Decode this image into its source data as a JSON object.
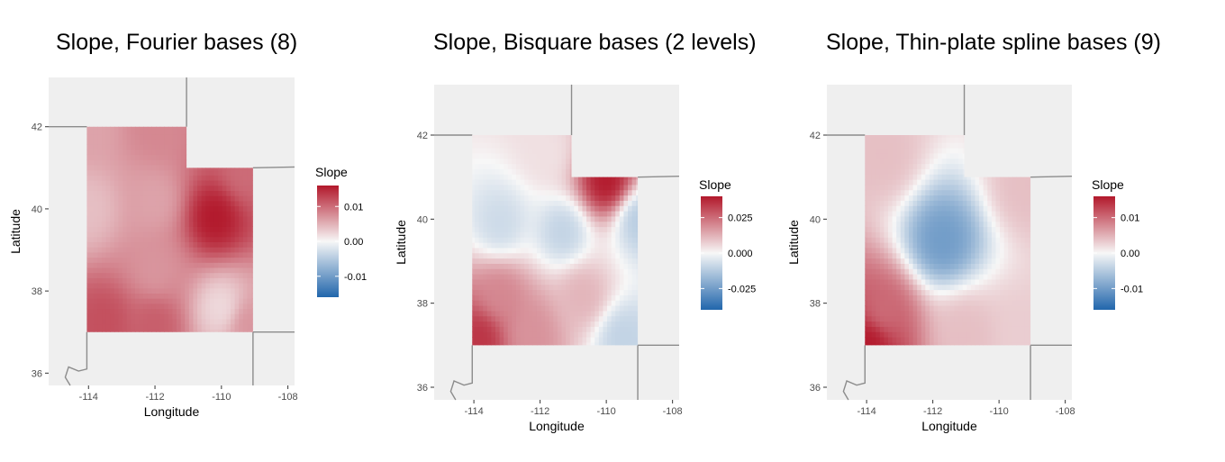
{
  "chart_data": [
    {
      "type": "heatmap",
      "title": "Slope, Fourier bases (8)",
      "xlabel": "Longitude",
      "ylabel": "Latitude",
      "xlim": [
        -115.2,
        -107.8
      ],
      "ylim": [
        35.7,
        43.2
      ],
      "x_ticks": [
        -114,
        -112,
        -110,
        -108
      ],
      "y_ticks": [
        36,
        38,
        40,
        42
      ],
      "x_tick_labels": [
        "-114",
        "-112",
        "-110",
        "-108"
      ],
      "y_tick_labels": [
        "36",
        "38",
        "40",
        "42"
      ],
      "legend": {
        "title": "Slope",
        "placement": "right",
        "min": -0.016,
        "max": 0.016,
        "ticks": [
          -0.01,
          0.0,
          0.01
        ],
        "tick_labels": [
          "-0.01",
          "0.00",
          "0.01"
        ]
      },
      "field": [
        {
          "lon": -114,
          "lat": 42,
          "value": 0.006
        },
        {
          "lon": -112,
          "lat": 42,
          "value": 0.008
        },
        {
          "lon": -114,
          "lat": 40,
          "value": 0.004
        },
        {
          "lon": -112,
          "lat": 40.2,
          "value": 0.006
        },
        {
          "lon": -110.2,
          "lat": 39.8,
          "value": 0.016
        },
        {
          "lon": -109.3,
          "lat": 40.9,
          "value": 0.01
        },
        {
          "lon": -113.5,
          "lat": 37.3,
          "value": 0.012
        },
        {
          "lon": -112,
          "lat": 37.2,
          "value": 0.011
        },
        {
          "lon": -110,
          "lat": 37.6,
          "value": 0.002
        },
        {
          "lon": -109.2,
          "lat": 37.2,
          "value": 0.007
        },
        {
          "lon": -112,
          "lat": 38.5,
          "value": 0.007
        }
      ]
    },
    {
      "type": "heatmap",
      "title": "Slope, Bisquare bases (2 levels)",
      "xlabel": "Longitude",
      "ylabel": "Latitude",
      "xlim": [
        -115.2,
        -107.8
      ],
      "ylim": [
        35.7,
        43.2
      ],
      "x_ticks": [
        -114,
        -112,
        -110,
        -108
      ],
      "y_ticks": [
        36,
        38,
        40,
        42
      ],
      "x_tick_labels": [
        "-114",
        "-112",
        "-110",
        "-108"
      ],
      "y_tick_labels": [
        "36",
        "38",
        "40",
        "42"
      ],
      "legend": {
        "title": "Slope",
        "placement": "right",
        "min": -0.04,
        "max": 0.04,
        "ticks": [
          -0.025,
          0.0,
          0.025
        ],
        "tick_labels": [
          "-0.025",
          "0.000",
          "0.025"
        ]
      },
      "field": [
        {
          "lon": -110,
          "lat": 40.9,
          "value": 0.04
        },
        {
          "lon": -113.8,
          "lat": 37.2,
          "value": 0.035
        },
        {
          "lon": -113.2,
          "lat": 38.2,
          "value": 0.02
        },
        {
          "lon": -113.2,
          "lat": 39.9,
          "value": -0.008
        },
        {
          "lon": -111.3,
          "lat": 39.7,
          "value": -0.01
        },
        {
          "lon": -109,
          "lat": 40,
          "value": -0.012
        },
        {
          "lon": -109.5,
          "lat": 37.2,
          "value": -0.01
        },
        {
          "lon": -111.8,
          "lat": 41.6,
          "value": 0.004
        },
        {
          "lon": -112.3,
          "lat": 37.3,
          "value": 0.018
        },
        {
          "lon": -110.7,
          "lat": 38.2,
          "value": 0.012
        }
      ]
    },
    {
      "type": "heatmap",
      "title": "Slope, Thin-plate spline bases (9)",
      "xlabel": "Longitude",
      "ylabel": "Latitude",
      "xlim": [
        -115.2,
        -107.8
      ],
      "ylim": [
        35.7,
        43.2
      ],
      "x_ticks": [
        -114,
        -112,
        -110,
        -108
      ],
      "y_ticks": [
        36,
        38,
        40,
        42
      ],
      "x_tick_labels": [
        "-114",
        "-112",
        "-110",
        "-108"
      ],
      "y_tick_labels": [
        "36",
        "38",
        "40",
        "42"
      ],
      "legend": {
        "title": "Slope",
        "placement": "right",
        "min": -0.016,
        "max": 0.016,
        "ticks": [
          -0.01,
          0.0,
          0.01
        ],
        "tick_labels": [
          "-0.01",
          "0.00",
          "0.01"
        ]
      },
      "field": [
        {
          "lon": -111.7,
          "lat": 39.5,
          "value": -0.01
        },
        {
          "lon": -113.9,
          "lat": 37.1,
          "value": 0.016
        },
        {
          "lon": -113.5,
          "lat": 37.8,
          "value": 0.01
        },
        {
          "lon": -113.5,
          "lat": 41.5,
          "value": 0.004
        },
        {
          "lon": -109.2,
          "lat": 40.8,
          "value": 0.004
        },
        {
          "lon": -109.3,
          "lat": 37.2,
          "value": 0.003
        },
        {
          "lon": -111,
          "lat": 37.3,
          "value": 0.004
        }
      ]
    }
  ]
}
